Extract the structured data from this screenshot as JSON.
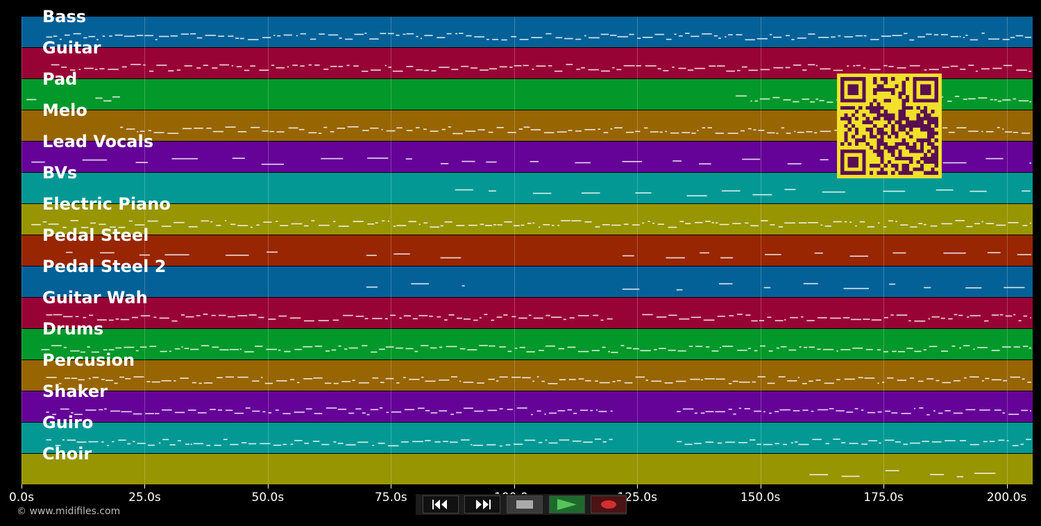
{
  "tracks": [
    {
      "name": "Bass",
      "color": "#036198"
    },
    {
      "name": "Guitar",
      "color": "#980336"
    },
    {
      "name": "Pad",
      "color": "#03982a"
    },
    {
      "name": "Melo",
      "color": "#986503"
    },
    {
      "name": "Lead Vocals",
      "color": "#650398"
    },
    {
      "name": "BVs",
      "color": "#039894"
    },
    {
      "name": "Electric Piano",
      "color": "#989503"
    },
    {
      "name": "Pedal Steel",
      "color": "#982603"
    },
    {
      "name": "Pedal Steel 2",
      "color": "#036198"
    },
    {
      "name": "Guitar Wah",
      "color": "#980336"
    },
    {
      "name": "Drums",
      "color": "#03982a"
    },
    {
      "name": "Percusion",
      "color": "#986503"
    },
    {
      "name": "Shaker",
      "color": "#650398"
    },
    {
      "name": "Guiro",
      "color": "#039894"
    },
    {
      "name": "Choir",
      "color": "#989503"
    }
  ],
  "time_axis": {
    "ticks": [
      "0.0s",
      "25.0s",
      "50.0s",
      "75.0s",
      "100.0s",
      "125.0s",
      "150.0s",
      "175.0s",
      "200.0s"
    ],
    "tick_values": [
      0,
      25,
      50,
      75,
      100,
      125,
      150,
      175,
      200
    ],
    "max_seconds": 205
  },
  "transport": {
    "buttons": [
      {
        "name": "rewind-button",
        "icon": "rewind-icon"
      },
      {
        "name": "fast-forward-button",
        "icon": "fast-forward-icon"
      },
      {
        "name": "stop-button",
        "icon": "stop-icon"
      },
      {
        "name": "play-button",
        "icon": "play-icon"
      },
      {
        "name": "record-button",
        "icon": "record-icon"
      }
    ]
  },
  "copyright": "© www.midifiles.com",
  "qr_code": {
    "icon": "qr-code-icon",
    "color": "#f2e12a"
  }
}
